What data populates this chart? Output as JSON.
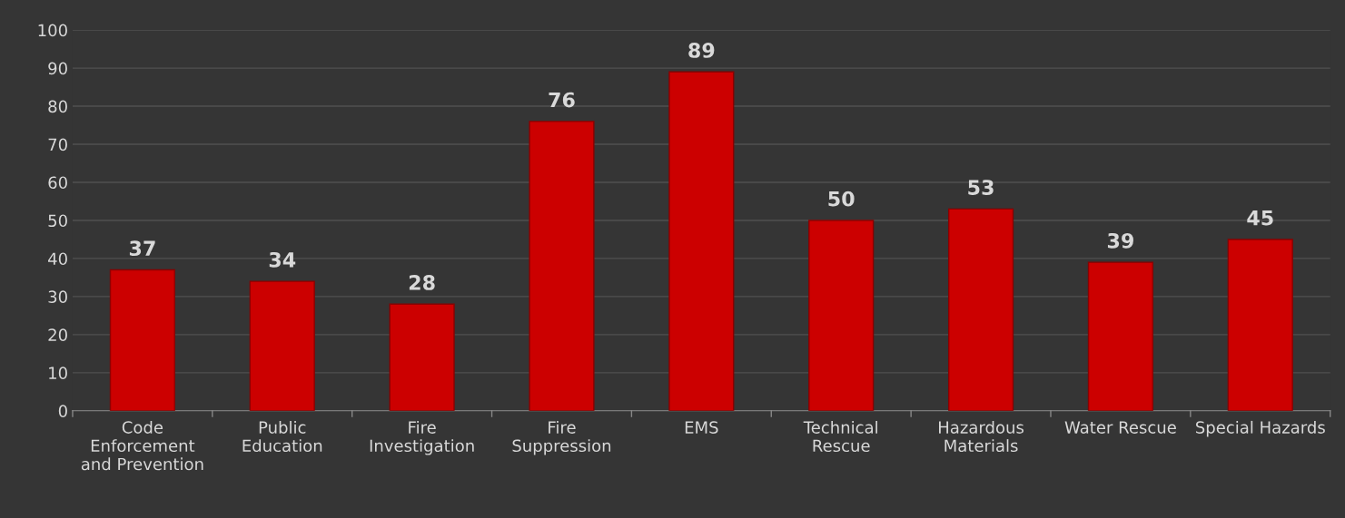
{
  "chart_data": {
    "type": "bar",
    "categories": [
      "Code\nEnforcement\nand Prevention",
      "Public\nEducation",
      "Fire\nInvestigation",
      "Fire\nSuppression",
      "EMS",
      "Technical\nRescue",
      "Hazardous\nMaterials",
      "Water Rescue",
      "Special Hazards"
    ],
    "values": [
      37,
      34,
      28,
      76,
      89,
      50,
      53,
      39,
      45
    ],
    "color": "#cc0000",
    "ylim": [
      0,
      100
    ],
    "yticks": [
      0,
      10,
      20,
      30,
      40,
      50,
      60,
      70,
      80,
      90,
      100
    ],
    "grid": "y",
    "data_labels": true
  }
}
